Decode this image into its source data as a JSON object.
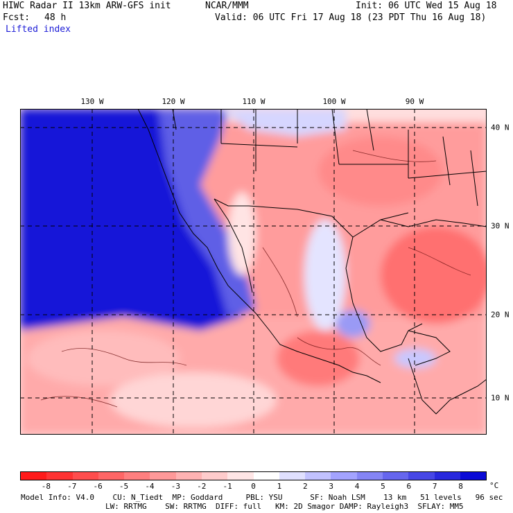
{
  "header": {
    "title_left": "HIWC Radar II 13km ARW-GFS init",
    "org": "NCAR/MMM",
    "init": "Init: 06 UTC Wed 15 Aug 18",
    "fcst_label": "Fcst:",
    "fcst_value": "48 h",
    "valid": "Valid: 06 UTC Fri 17 Aug 18 (23 PDT Thu 16 Aug 18)",
    "field": "Lifted index"
  },
  "map": {
    "lon_labels": [
      "130 W",
      "120 W",
      "110 W",
      "100 W",
      "90 W"
    ],
    "lat_labels": [
      "40 N",
      "30 N",
      "20 N",
      "10 N"
    ],
    "lon_extent": [
      -139.5,
      -81.5
    ],
    "lat_extent": [
      5.5,
      41.5
    ]
  },
  "colorbar": {
    "ticks": [
      "-8",
      "-7",
      "-6",
      "-5",
      "-4",
      "-3",
      "-2",
      "-1",
      "0",
      "1",
      "2",
      "3",
      "4",
      "5",
      "6",
      "7",
      "8"
    ],
    "unit": "°C",
    "colors": [
      "#ff1a1a",
      "#ff3333",
      "#ff4d4d",
      "#ff6666",
      "#ff7f7f",
      "#ff9999",
      "#ffb3b3",
      "#ffcccc",
      "#ffe6e6",
      "#ffffff",
      "#e0e0ff",
      "#c2c2ff",
      "#a3a3ff",
      "#8585f5",
      "#6666ee",
      "#4747e6",
      "#2929dd",
      "#0a0ad6"
    ]
  },
  "footer": {
    "line1": "Model Info: V4.0    CU: N_Tiedt  MP: Goddard     PBL: YSU      SF: Noah LSM    13 km   51 levels   96 sec",
    "line2": "LW: RRTMG    SW: RRTMG  DIFF: full   KM: 2D Smagor DAMP: Rayleigh3  SFLAY: MM5"
  }
}
